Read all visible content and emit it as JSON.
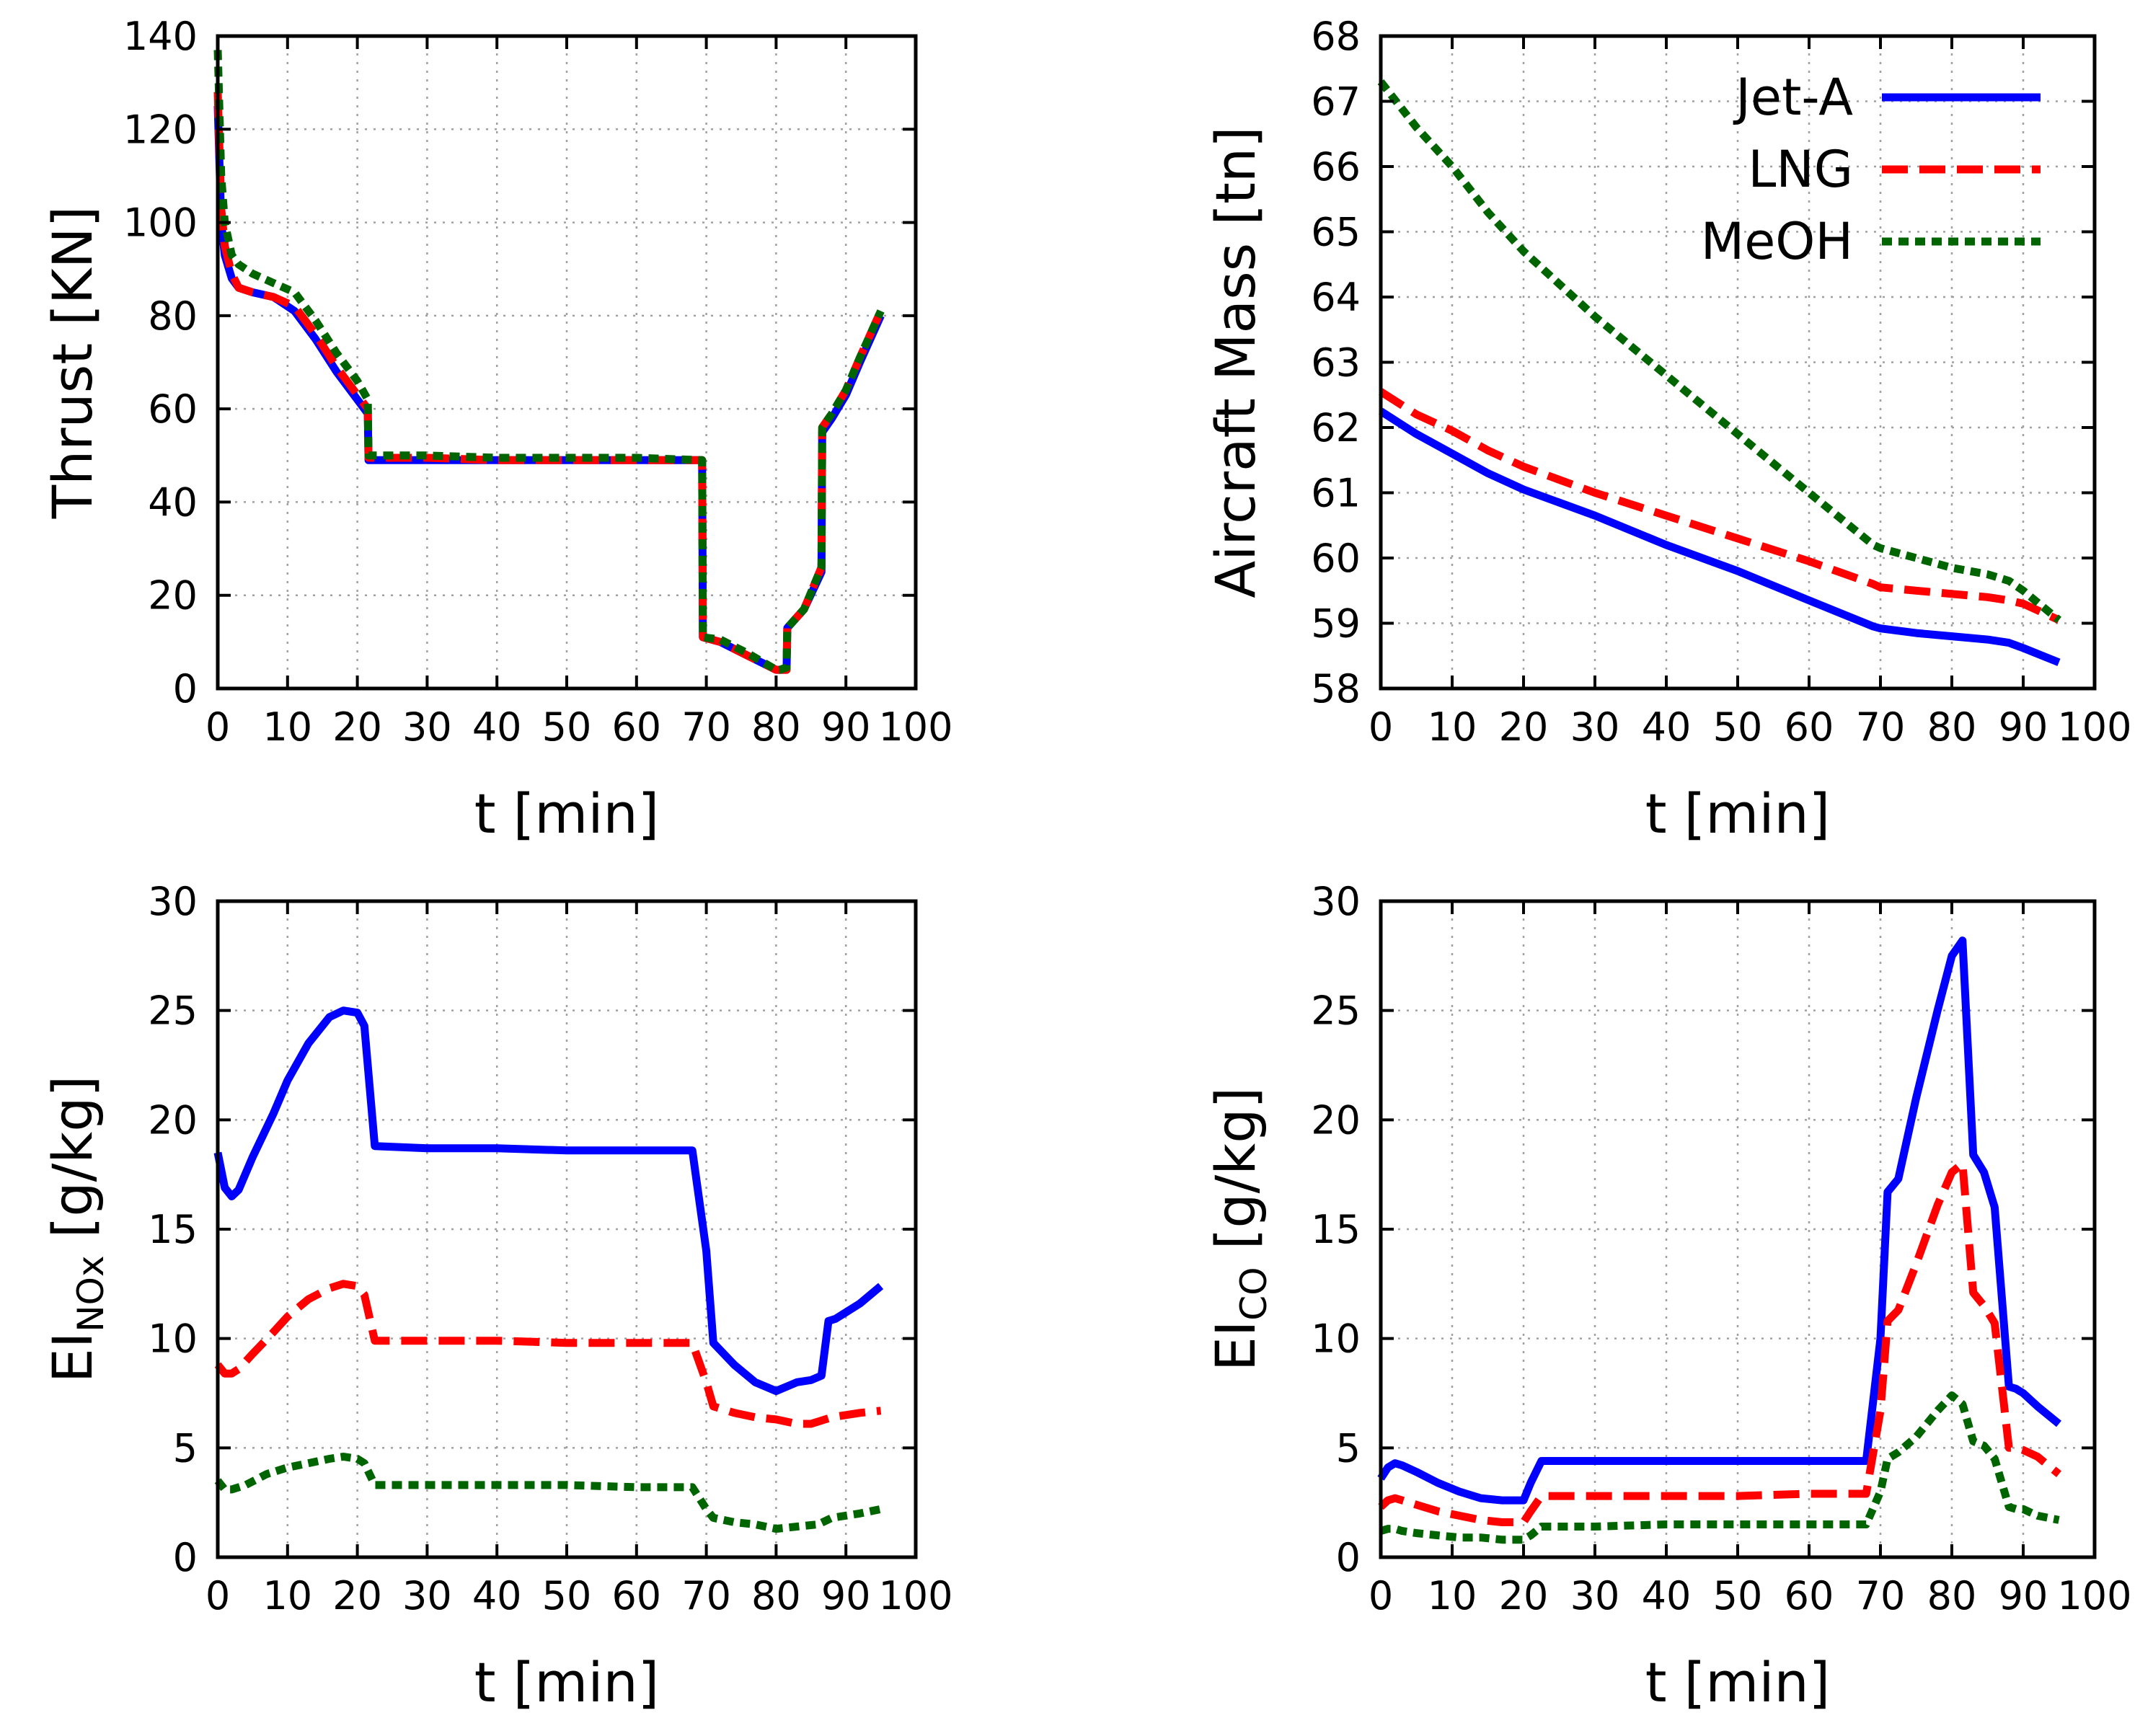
{
  "chart_data": [
    {
      "id": "thrust",
      "type": "line",
      "xlabel": "t [min]",
      "ylabel": "Thrust [KN]",
      "xlim": [
        0,
        100
      ],
      "ylim": [
        0,
        140
      ],
      "xticks": [
        0,
        10,
        20,
        30,
        40,
        50,
        60,
        70,
        80,
        90,
        100
      ],
      "yticks": [
        0,
        20,
        40,
        60,
        80,
        100,
        120,
        140
      ],
      "grid": true,
      "series": [
        {
          "name": "Jet-A",
          "x": [
            0,
            0.5,
            1,
            2,
            3,
            5,
            8,
            11,
            14,
            17,
            20,
            21.5,
            21.6,
            30,
            40,
            50,
            60,
            69.4,
            69.5,
            72,
            76,
            80,
            80.5,
            81.5,
            81.6,
            84,
            86.5,
            86.6,
            88,
            90,
            92,
            95
          ],
          "y": [
            125,
            100,
            93,
            88,
            86,
            85,
            84,
            81,
            75,
            68,
            62,
            59,
            49,
            49,
            49,
            49,
            49,
            49,
            11,
            10,
            7,
            4,
            4,
            4,
            13,
            17,
            25,
            55,
            58,
            63,
            70,
            80
          ]
        },
        {
          "name": "LNG",
          "x": [
            0,
            0.5,
            1,
            2,
            3,
            5,
            8,
            11,
            14,
            17,
            20,
            21.5,
            21.6,
            30,
            40,
            50,
            60,
            69.4,
            69.5,
            72,
            76,
            80,
            80.5,
            81.5,
            81.6,
            84,
            86.5,
            86.6,
            88,
            90,
            92,
            95
          ],
          "y": [
            128,
            103,
            95,
            89,
            86,
            85,
            84,
            82,
            76,
            69,
            63,
            60,
            49.5,
            49.5,
            49,
            49,
            49,
            49,
            11,
            10,
            7,
            4,
            4,
            4,
            13,
            17,
            26,
            56,
            59,
            64,
            71,
            81
          ]
        },
        {
          "name": "MeOH",
          "x": [
            0,
            0.5,
            1,
            2,
            3,
            5,
            8,
            11,
            14,
            17,
            20,
            21.5,
            21.6,
            30,
            40,
            50,
            60,
            69.4,
            69.5,
            72,
            76,
            80,
            80.5,
            81.5,
            81.6,
            84,
            86.5,
            86.6,
            88,
            90,
            92,
            95
          ],
          "y": [
            137,
            110,
            100,
            93,
            91,
            89,
            87,
            85,
            79,
            72,
            66,
            62,
            50,
            50,
            49.5,
            49.5,
            49.5,
            49,
            11,
            10.5,
            7.5,
            4,
            4,
            4.5,
            13,
            17,
            26,
            56,
            59,
            64,
            71,
            81
          ]
        }
      ]
    },
    {
      "id": "mass",
      "type": "line",
      "xlabel": "t [min]",
      "ylabel": "Aircraft Mass [tn]",
      "xlim": [
        0,
        100
      ],
      "ylim": [
        58,
        68
      ],
      "xticks": [
        0,
        10,
        20,
        30,
        40,
        50,
        60,
        70,
        80,
        90,
        100
      ],
      "yticks": [
        58,
        59,
        60,
        61,
        62,
        63,
        64,
        65,
        66,
        67,
        68
      ],
      "grid": true,
      "legend": {
        "position": "top-right",
        "entries": [
          "Jet-A",
          "LNG",
          "MeOH"
        ]
      },
      "series": [
        {
          "name": "Jet-A",
          "x": [
            0,
            5,
            10,
            15,
            20,
            25,
            30,
            40,
            50,
            60,
            69,
            70,
            75,
            80,
            85,
            88,
            90,
            95
          ],
          "y": [
            62.25,
            61.9,
            61.6,
            61.3,
            61.05,
            60.85,
            60.65,
            60.2,
            59.8,
            59.35,
            58.95,
            58.92,
            58.85,
            58.8,
            58.75,
            58.7,
            58.62,
            58.4
          ]
        },
        {
          "name": "LNG",
          "x": [
            0,
            5,
            10,
            15,
            20,
            25,
            30,
            40,
            50,
            60,
            69,
            70,
            75,
            80,
            85,
            88,
            90,
            95
          ],
          "y": [
            62.55,
            62.2,
            61.95,
            61.65,
            61.4,
            61.2,
            61.0,
            60.65,
            60.3,
            59.95,
            59.6,
            59.55,
            59.5,
            59.45,
            59.4,
            59.35,
            59.3,
            59.05
          ]
        },
        {
          "name": "MeOH",
          "x": [
            0,
            5,
            10,
            15,
            20,
            25,
            30,
            40,
            50,
            60,
            69,
            70,
            75,
            80,
            85,
            88,
            90,
            95
          ],
          "y": [
            67.3,
            66.6,
            66.0,
            65.3,
            64.7,
            64.2,
            63.7,
            62.8,
            61.9,
            61.0,
            60.2,
            60.15,
            60.0,
            59.85,
            59.75,
            59.65,
            59.5,
            59.05
          ]
        }
      ]
    },
    {
      "id": "einox",
      "type": "line",
      "xlabel": "t [min]",
      "ylabel": "EINOx [g/kg]",
      "ylabel_main": "EI",
      "ylabel_sub": "NOx",
      "ylabel_unit": "[g/kg]",
      "xlim": [
        0,
        100
      ],
      "ylim": [
        0,
        30
      ],
      "xticks": [
        0,
        10,
        20,
        30,
        40,
        50,
        60,
        70,
        80,
        90,
        100
      ],
      "yticks": [
        0,
        5,
        10,
        15,
        20,
        25,
        30
      ],
      "grid": true,
      "series": [
        {
          "name": "Jet-A",
          "x": [
            0,
            1,
            2,
            3,
            5,
            8,
            10,
            13,
            16,
            18,
            20,
            21,
            22.5,
            30,
            40,
            50,
            60,
            68,
            70,
            71,
            74,
            77,
            80,
            81.5,
            83,
            85,
            86.5,
            87.5,
            88.5,
            90,
            92,
            95
          ],
          "y": [
            18.5,
            16.9,
            16.5,
            16.8,
            18.3,
            20.3,
            21.8,
            23.5,
            24.7,
            25.0,
            24.9,
            24.3,
            18.8,
            18.7,
            18.7,
            18.6,
            18.6,
            18.6,
            14.0,
            9.8,
            8.8,
            8.0,
            7.6,
            7.8,
            8.0,
            8.1,
            8.3,
            10.8,
            10.9,
            11.2,
            11.6,
            12.4
          ]
        },
        {
          "name": "LNG",
          "x": [
            0,
            1,
            2,
            3,
            5,
            8,
            10,
            13,
            16,
            18,
            20,
            21,
            22.5,
            30,
            40,
            50,
            60,
            68,
            70,
            71,
            74,
            77,
            80,
            83,
            85,
            88,
            92,
            95
          ],
          "y": [
            8.8,
            8.4,
            8.4,
            8.6,
            9.3,
            10.3,
            11.0,
            11.8,
            12.3,
            12.5,
            12.4,
            12.0,
            9.9,
            9.9,
            9.9,
            9.8,
            9.8,
            9.8,
            8.0,
            6.9,
            6.6,
            6.4,
            6.3,
            6.1,
            6.1,
            6.4,
            6.6,
            6.7
          ]
        },
        {
          "name": "MeOH",
          "x": [
            0,
            1,
            2,
            4,
            7,
            10,
            13,
            16,
            18,
            20,
            21,
            22.5,
            30,
            40,
            50,
            60,
            68,
            70,
            71,
            74,
            77,
            80,
            83,
            86,
            88,
            92,
            95
          ],
          "y": [
            3.5,
            3.1,
            3.1,
            3.3,
            3.8,
            4.1,
            4.3,
            4.5,
            4.6,
            4.5,
            4.3,
            3.3,
            3.3,
            3.3,
            3.3,
            3.2,
            3.2,
            2.2,
            1.8,
            1.6,
            1.5,
            1.3,
            1.4,
            1.5,
            1.8,
            2.0,
            2.2
          ]
        }
      ]
    },
    {
      "id": "eico",
      "type": "line",
      "xlabel": "t [min]",
      "ylabel": "EICO [g/kg]",
      "ylabel_main": "EI",
      "ylabel_sub": "CO",
      "ylabel_unit": "[g/kg]",
      "xlim": [
        0,
        100
      ],
      "ylim": [
        0,
        30
      ],
      "xticks": [
        0,
        10,
        20,
        30,
        40,
        50,
        60,
        70,
        80,
        90,
        100
      ],
      "yticks": [
        0,
        5,
        10,
        15,
        20,
        25,
        30
      ],
      "grid": true,
      "series": [
        {
          "name": "Jet-A",
          "x": [
            0,
            1,
            2,
            3,
            5,
            8,
            11,
            14,
            17,
            20,
            21,
            22.5,
            30,
            40,
            50,
            60,
            68,
            70,
            71,
            72.5,
            75,
            78,
            80,
            81.5,
            83,
            84.5,
            86,
            88,
            89,
            90,
            92,
            95
          ],
          "y": [
            3.6,
            4.1,
            4.3,
            4.2,
            3.9,
            3.4,
            3.0,
            2.7,
            2.6,
            2.6,
            3.4,
            4.4,
            4.4,
            4.4,
            4.4,
            4.4,
            4.4,
            10.0,
            16.7,
            17.3,
            21.0,
            25.0,
            27.5,
            28.2,
            18.4,
            17.6,
            16.0,
            7.8,
            7.7,
            7.5,
            6.9,
            6.1
          ]
        },
        {
          "name": "LNG",
          "x": [
            0,
            1,
            2,
            3,
            5,
            8,
            11,
            14,
            17,
            20,
            21,
            22.5,
            30,
            40,
            50,
            60,
            68,
            70,
            71,
            72.5,
            75,
            78,
            80,
            81.5,
            83,
            84.5,
            86,
            88,
            89,
            90,
            92,
            95
          ],
          "y": [
            2.3,
            2.6,
            2.7,
            2.6,
            2.4,
            2.1,
            1.9,
            1.7,
            1.6,
            1.6,
            2.1,
            2.8,
            2.8,
            2.8,
            2.8,
            2.9,
            2.9,
            6.7,
            10.8,
            11.3,
            13.4,
            16.1,
            17.6,
            18.0,
            12.1,
            11.5,
            10.7,
            5.0,
            5.0,
            4.9,
            4.6,
            3.8
          ]
        },
        {
          "name": "MeOH",
          "x": [
            0,
            1,
            2,
            3,
            5,
            8,
            11,
            14,
            17,
            20,
            21,
            22.5,
            30,
            40,
            50,
            60,
            68,
            70,
            71,
            72.5,
            75,
            78,
            80,
            81.5,
            83,
            84.5,
            86,
            88,
            89,
            90,
            92,
            95
          ],
          "y": [
            1.2,
            1.3,
            1.3,
            1.2,
            1.1,
            1.0,
            0.9,
            0.9,
            0.8,
            0.8,
            1.0,
            1.4,
            1.4,
            1.5,
            1.5,
            1.5,
            1.5,
            3.0,
            4.5,
            4.8,
            5.5,
            6.7,
            7.4,
            7.0,
            5.3,
            5.1,
            4.5,
            2.3,
            2.2,
            2.2,
            1.9,
            1.7
          ]
        }
      ]
    }
  ],
  "colors": {
    "Jet-A": "#0000ff",
    "LNG": "#ff0000",
    "MeOH": "#006400",
    "grid": "#a0a0a0",
    "axis": "#000000"
  }
}
